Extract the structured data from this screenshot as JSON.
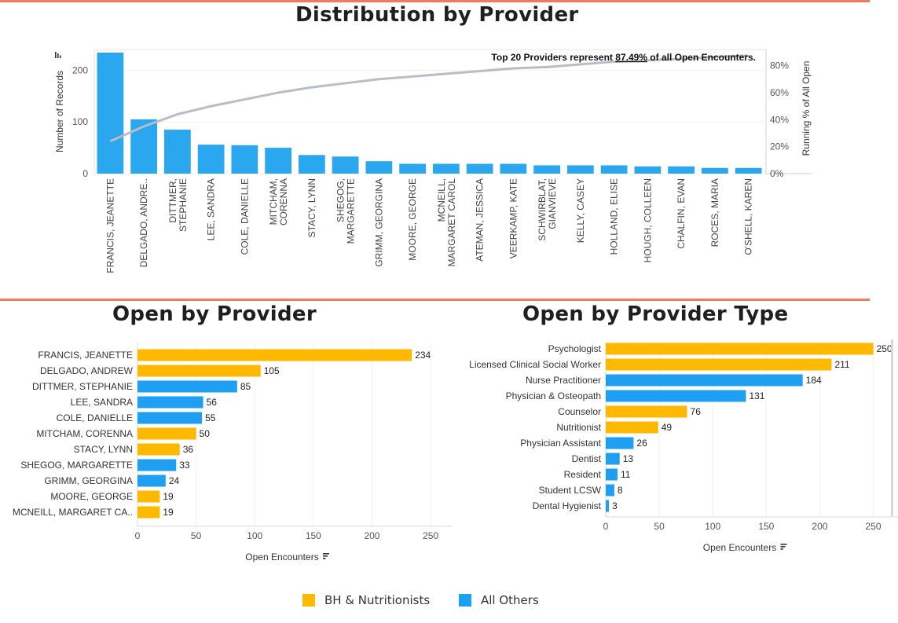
{
  "colors": {
    "bh": "#FFB800",
    "others": "#1E9FF2",
    "pareto_bar": "#2AA7EE",
    "pareto_line": "#B7BEC6",
    "rule": "#F07B5A"
  },
  "distribution": {
    "title": "Distribution by Provider",
    "annotation_prefix": "Top 20 Providers represent ",
    "annotation_pct": "87.49%",
    "annotation_suffix": " of all Open Encounters.",
    "sort_icon": "sort-icon"
  },
  "open_by_provider": {
    "title": "Open by Provider",
    "sort_icon": "sort-icon"
  },
  "open_by_type": {
    "title": "Open by Provider Type",
    "sort_icon": "sort-icon"
  },
  "legend": {
    "bh": "BH & Nutritionists",
    "others": "All Others"
  },
  "chart_data": [
    {
      "type": "bar",
      "title": "Distribution by Provider",
      "ylabel": "Number of Records",
      "y2label": "Running % of All Open",
      "ylim": [
        0,
        240
      ],
      "y_ticks": [
        0,
        100,
        200
      ],
      "y2_ticks": [
        "0%",
        "20%",
        "40%",
        "60%",
        "80%"
      ],
      "y2lim": [
        0,
        0.92
      ],
      "categories": [
        "FRANCIS, JEANETTE",
        "DELGADO, ANDRE..",
        "DITTMER, STEPHANIE",
        "LEE, SANDRA",
        "COLE, DANIELLE",
        "MITCHAM, CORENNA",
        "STACY, LYNN",
        "SHEGOG, MARGARETTE",
        "GRIMM, GEORGINA",
        "MOORE, GEORGE",
        "MCNEILL, MARGARET CAROL",
        "ATEMAN, JESSICA",
        "VEERKAMP, KATE",
        "SCHWIRBLAT, GIANVIEVE",
        "KELLY, CASEY",
        "HOLLAND, ELISE",
        "HOUGH, COLLEEN",
        "CHALFIN, EVAN",
        "ROCES, MARIA",
        "O'SHELL, KAREN"
      ],
      "category_lines": [
        [
          "FRANCIS, JEANETTE"
        ],
        [
          "DELGADO, ANDRE.."
        ],
        [
          "DITTMER,",
          "STEPHANIE"
        ],
        [
          "LEE, SANDRA"
        ],
        [
          "COLE, DANIELLE"
        ],
        [
          "MITCHAM,",
          "CORENNA"
        ],
        [
          "STACY, LYNN"
        ],
        [
          "SHEGOG,",
          "MARGARETTE"
        ],
        [
          "GRIMM, GEORGINA"
        ],
        [
          "MOORE, GEORGE"
        ],
        [
          "MCNEILL,",
          "MARGARET CAROL"
        ],
        [
          "ATEMAN, JESSICA"
        ],
        [
          "VEERKAMP, KATE"
        ],
        [
          "SCHWIRBLAT,",
          "GIANVIEVE"
        ],
        [
          "KELLY, CASEY"
        ],
        [
          "HOLLAND, ELISE"
        ],
        [
          "HOUGH, COLLEEN"
        ],
        [
          "CHALFIN, EVAN"
        ],
        [
          "ROCES, MARIA"
        ],
        [
          "O'SHELL, KAREN"
        ]
      ],
      "series": [
        {
          "name": "Number of Records",
          "values": [
            234,
            105,
            85,
            56,
            55,
            50,
            36,
            33,
            24,
            19,
            19,
            19,
            19,
            16,
            16,
            16,
            14,
            14,
            11,
            11
          ]
        },
        {
          "name": "Running % of All Open",
          "values": [
            0.24,
            0.35,
            0.44,
            0.5,
            0.55,
            0.6,
            0.64,
            0.67,
            0.7,
            0.72,
            0.74,
            0.76,
            0.78,
            0.79,
            0.81,
            0.83,
            0.84,
            0.85,
            0.865,
            0.875
          ]
        }
      ],
      "grid": true
    },
    {
      "type": "bar",
      "orientation": "horizontal",
      "title": "Open by Provider",
      "xlabel": "Open Encounters",
      "xlim": [
        0,
        260
      ],
      "x_ticks": [
        0,
        50,
        100,
        150,
        200,
        250
      ],
      "categories": [
        "FRANCIS, JEANETTE",
        "DELGADO, ANDREW",
        "DITTMER, STEPHANIE",
        "LEE, SANDRA",
        "COLE, DANIELLE",
        "MITCHAM, CORENNA",
        "STACY, LYNN",
        "SHEGOG, MARGARETTE",
        "GRIMM, GEORGINA",
        "MOORE, GEORGE",
        "MCNEILL, MARGARET CA.."
      ],
      "values": [
        234,
        105,
        85,
        56,
        55,
        50,
        36,
        33,
        24,
        19,
        19
      ],
      "groups": [
        "bh",
        "bh",
        "others",
        "others",
        "others",
        "bh",
        "bh",
        "others",
        "others",
        "bh",
        "bh"
      ],
      "grid": true
    },
    {
      "type": "bar",
      "orientation": "horizontal",
      "title": "Open by Provider Type",
      "xlabel": "Open Encounters",
      "xlim": [
        0,
        265
      ],
      "x_ticks": [
        0,
        50,
        100,
        150,
        200,
        250
      ],
      "categories": [
        "Psychologist",
        "Licensed Clinical Social Worker",
        "Nurse Practitioner",
        "Physician & Osteopath",
        "Counselor",
        "Nutritionist",
        "Physician Assistant",
        "Dentist",
        "Resident",
        "Student LCSW",
        "Dental Hygienist"
      ],
      "values": [
        250,
        211,
        184,
        131,
        76,
        49,
        26,
        13,
        11,
        8,
        3
      ],
      "groups": [
        "bh",
        "bh",
        "others",
        "others",
        "bh",
        "bh",
        "others",
        "others",
        "others",
        "others",
        "others"
      ],
      "grid": true
    }
  ]
}
